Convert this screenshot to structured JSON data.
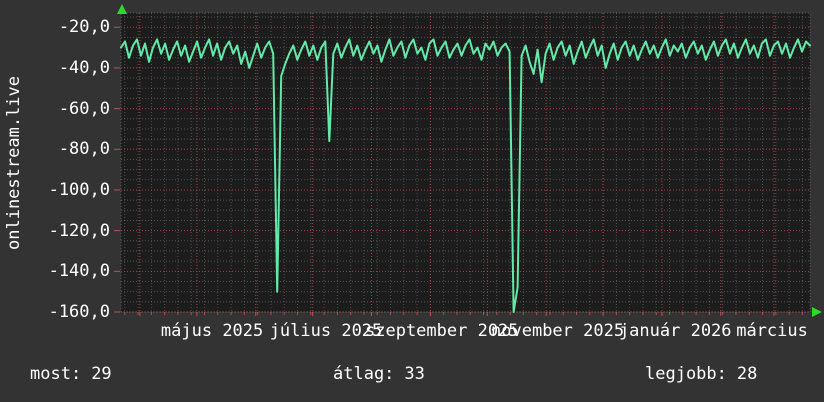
{
  "colors": {
    "background": "#333333",
    "plot_background": "#1c1c1c",
    "line": "#63e9a8",
    "grid_minor": "#969696",
    "grid_major": "#c05050",
    "axis_arrow": "#2fd82f",
    "text": "#ffffff"
  },
  "chart_data": {
    "type": "line",
    "title": "onlinestream.live",
    "ylabel_rotated": "onlinestream.live",
    "grid": "on",
    "legend_position": "none",
    "ylim": [
      -160,
      -13
    ],
    "y_ticks": [
      {
        "value": -20,
        "label": "-20,0"
      },
      {
        "value": -40,
        "label": "-40,0"
      },
      {
        "value": -60,
        "label": "-60,0"
      },
      {
        "value": -80,
        "label": "-80,0"
      },
      {
        "value": -100,
        "label": "-100,0"
      },
      {
        "value": -120,
        "label": "-120,0"
      },
      {
        "value": -140,
        "label": "-140,0"
      },
      {
        "value": -160,
        "label": "-160,0"
      }
    ],
    "y_minor_step": 5,
    "x_start": "2025-03-22",
    "x_end": "2026-03-20",
    "x_minor_step_days": 7,
    "month_gridlines": [
      "2025-04-01",
      "2025-05-01",
      "2025-06-01",
      "2025-07-01",
      "2025-08-01",
      "2025-09-01",
      "2025-10-01",
      "2025-11-01",
      "2025-12-01",
      "2026-01-01",
      "2026-02-01",
      "2026-03-01"
    ],
    "x_labels": [
      {
        "text": "május 2025",
        "anchor": "2025-05-09"
      },
      {
        "text": "július 2025",
        "anchor": "2025-07-08"
      },
      {
        "text": "szeptember 2025",
        "anchor": "2025-09-07"
      },
      {
        "text": "november 2025",
        "anchor": "2025-11-07"
      },
      {
        "text": "január 2026",
        "anchor": "2026-01-08"
      },
      {
        "text": "március",
        "anchor": "2026-02-28"
      }
    ],
    "series": [
      {
        "name": "onlinestream.live",
        "start": "2025-03-22",
        "step_days": 2.11,
        "values": [
          -30,
          -27,
          -35,
          -29,
          -26,
          -34,
          -28,
          -37,
          -30,
          -26,
          -33,
          -28,
          -36,
          -31,
          -27,
          -34,
          -29,
          -37,
          -32,
          -27,
          -35,
          -30,
          -26,
          -34,
          -28,
          -36,
          -30,
          -27,
          -33,
          -29,
          -38,
          -32,
          -40,
          -34,
          -28,
          -35,
          -30,
          -27,
          -33,
          -150,
          -44,
          -38,
          -33,
          -29,
          -36,
          -31,
          -27,
          -34,
          -29,
          -36,
          -30,
          -27,
          -76,
          -33,
          -28,
          -35,
          -30,
          -26,
          -34,
          -29,
          -36,
          -31,
          -27,
          -33,
          -29,
          -37,
          -31,
          -26,
          -34,
          -30,
          -27,
          -35,
          -29,
          -26,
          -33,
          -30,
          -36,
          -28,
          -26,
          -34,
          -30,
          -27,
          -35,
          -31,
          -28,
          -34,
          -29,
          -26,
          -33,
          -30,
          -36,
          -28,
          -31,
          -27,
          -34,
          -30,
          -28,
          -32,
          -160,
          -148,
          -34,
          -29,
          -37,
          -43,
          -31,
          -47,
          -33,
          -28,
          -36,
          -30,
          -27,
          -34,
          -29,
          -38,
          -32,
          -27,
          -35,
          -30,
          -26,
          -34,
          -29,
          -40,
          -33,
          -28,
          -36,
          -30,
          -27,
          -34,
          -29,
          -36,
          -31,
          -27,
          -33,
          -29,
          -35,
          -30,
          -26,
          -34,
          -29,
          -32,
          -28,
          -35,
          -30,
          -27,
          -33,
          -29,
          -36,
          -31,
          -27,
          -34,
          -29,
          -26,
          -33,
          -28,
          -35,
          -30,
          -26,
          -33,
          -29,
          -35,
          -28,
          -26,
          -34,
          -29,
          -27,
          -33,
          -28,
          -35,
          -30,
          -26,
          -32,
          -27,
          -29
        ]
      }
    ]
  },
  "stats_row": {
    "items": [
      {
        "label": "most:",
        "value": "29"
      },
      {
        "label": "átlag:",
        "value": "33"
      },
      {
        "label": "legjobb:",
        "value": "28"
      }
    ]
  },
  "icons": {
    "y_axis_arrow": "up-arrow",
    "x_axis_arrow": "right-arrow"
  }
}
